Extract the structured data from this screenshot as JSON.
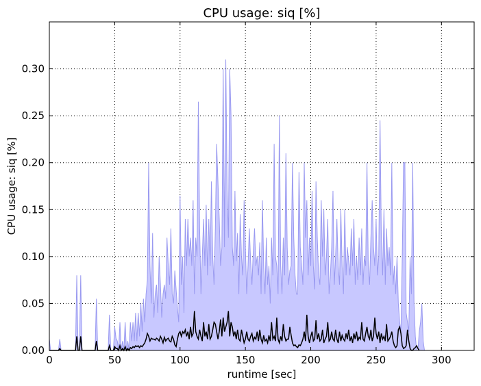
{
  "chart_data": {
    "type": "area",
    "title": "CPU usage: siq [%]",
    "xlabel": "runtime [sec]",
    "ylabel": "CPU usage: siq [%]",
    "xlim": [
      0,
      325
    ],
    "ylim": [
      0,
      0.35
    ],
    "x_ticks": [
      0,
      50,
      100,
      150,
      200,
      250,
      300
    ],
    "y_ticks": [
      0.0,
      0.05,
      0.1,
      0.15,
      0.2,
      0.25,
      0.3
    ],
    "x_tick_labels": [
      "0",
      "50",
      "100",
      "150",
      "200",
      "250",
      "300"
    ],
    "y_tick_labels": [
      "0.00",
      "0.05",
      "0.10",
      "0.15",
      "0.20",
      "0.25",
      "0.30"
    ],
    "grid": true,
    "x_step": 1,
    "series": [
      {
        "role": "max band (filled area)",
        "color": "#c8c8ff",
        "edge_color": "#9a9af0",
        "values": [
          0.012,
          0,
          0,
          0,
          0,
          0,
          0,
          0,
          0.012,
          0,
          0,
          0,
          0,
          0,
          0,
          0,
          0,
          0,
          0,
          0,
          0,
          0.08,
          0,
          0,
          0.08,
          0,
          0,
          0,
          0,
          0,
          0,
          0,
          0,
          0,
          0,
          0,
          0.055,
          0,
          0,
          0,
          0,
          0,
          0,
          0,
          0,
          0,
          0.038,
          0,
          0,
          0,
          0.025,
          0.013,
          0.01,
          0,
          0.03,
          0,
          0.01,
          0,
          0.03,
          0,
          0.01,
          0,
          0.03,
          0.01,
          0.03,
          0.01,
          0.04,
          0.01,
          0.04,
          0.015,
          0.05,
          0.02,
          0.055,
          0.03,
          0.06,
          0.075,
          0.2,
          0.09,
          0.05,
          0.125,
          0.035,
          0.06,
          0.07,
          0.04,
          0.1,
          0.07,
          0.035,
          0.06,
          0.07,
          0.055,
          0.12,
          0.09,
          0.07,
          0.13,
          0.06,
          0.05,
          0.085,
          0.065,
          0.045,
          0.03,
          0.165,
          0.07,
          0.1,
          0.04,
          0.14,
          0.09,
          0.14,
          0.1,
          0.12,
          0.09,
          0.16,
          0.06,
          0.12,
          0.1,
          0.265,
          0.13,
          0.06,
          0.1,
          0.14,
          0.09,
          0.155,
          0.08,
          0.14,
          0.09,
          0.18,
          0.1,
          0.07,
          0.13,
          0.22,
          0.18,
          0.14,
          0.09,
          0.11,
          0.3,
          0.11,
          0.31,
          0.17,
          0.12,
          0.3,
          0.25,
          0.11,
          0.09,
          0.17,
          0.095,
          0.125,
          0.06,
          0.145,
          0.1,
          0.08,
          0.16,
          0.11,
          0.06,
          0.09,
          0.13,
          0.095,
          0.07,
          0.105,
          0.13,
          0.09,
          0.1,
          0.08,
          0.115,
          0.06,
          0.16,
          0.09,
          0.06,
          0.12,
          0.07,
          0.09,
          0.05,
          0.12,
          0.08,
          0.22,
          0.1,
          0.09,
          0.06,
          0.25,
          0.09,
          0.06,
          0.12,
          0.08,
          0.21,
          0.11,
          0.07,
          0.085,
          0.09,
          0.2,
          0.12,
          0.08,
          0.06,
          0.06,
          0.19,
          0.11,
          0.09,
          0.07,
          0.2,
          0.12,
          0.16,
          0.08,
          0.12,
          0.09,
          0.17,
          0.09,
          0.065,
          0.18,
          0.12,
          0.08,
          0.07,
          0.16,
          0.1,
          0.15,
          0.08,
          0.1,
          0.14,
          0.06,
          0.08,
          0.11,
          0.17,
          0.07,
          0.1,
          0.14,
          0.09,
          0.07,
          0.15,
          0.09,
          0.06,
          0.15,
          0.08,
          0.11,
          0.095,
          0.08,
          0.13,
          0.09,
          0.14,
          0.07,
          0.1,
          0.075,
          0.12,
          0.08,
          0.13,
          0.07,
          0.1,
          0.09,
          0.2,
          0.09,
          0.07,
          0.12,
          0.16,
          0.11,
          0.09,
          0.14,
          0.08,
          0.1,
          0.245,
          0.12,
          0.08,
          0.15,
          0.07,
          0.13,
          0.09,
          0.11,
          0.08,
          0.2,
          0.07,
          0.09,
          0.06,
          0.1,
          0.05,
          0.03,
          0.02,
          0.1,
          0.2,
          0.2,
          0.04,
          0.03,
          0.02,
          0.1,
          0.06,
          0.2,
          0.05,
          0.015,
          0,
          0,
          0.02,
          0.03,
          0.05,
          0.01,
          0
        ]
      },
      {
        "role": "mean (line)",
        "color": "#000000",
        "values": [
          0,
          0,
          0,
          0,
          0,
          0,
          0,
          0,
          0.002,
          0,
          0,
          0,
          0,
          0,
          0,
          0,
          0,
          0,
          0,
          0,
          0,
          0.015,
          0,
          0,
          0.015,
          0,
          0,
          0,
          0,
          0,
          0,
          0,
          0,
          0,
          0,
          0,
          0.01,
          0,
          0,
          0,
          0,
          0,
          0,
          0,
          0,
          0,
          0.005,
          0,
          0,
          0,
          0.004,
          0.002,
          0.002,
          0,
          0.005,
          0,
          0.002,
          0,
          0.004,
          0,
          0.002,
          0,
          0.003,
          0.002,
          0.004,
          0.003,
          0.005,
          0.004,
          0.005,
          0.003,
          0.005,
          0.004,
          0.006,
          0.008,
          0.012,
          0.018,
          0.015,
          0.01,
          0.013,
          0.012,
          0.012,
          0.011,
          0.013,
          0.012,
          0.01,
          0.015,
          0.012,
          0.008,
          0.014,
          0.01,
          0.012,
          0.013,
          0.01,
          0.009,
          0.015,
          0.012,
          0.006,
          0.004,
          0.012,
          0.018,
          0.02,
          0.015,
          0.02,
          0.018,
          0.022,
          0.015,
          0.02,
          0.012,
          0.025,
          0.015,
          0.018,
          0.042,
          0.02,
          0.015,
          0.012,
          0.022,
          0.015,
          0.01,
          0.03,
          0.015,
          0.02,
          0.012,
          0.028,
          0.012,
          0.015,
          0.022,
          0.03,
          0.028,
          0.02,
          0.012,
          0.02,
          0.033,
          0.015,
          0.035,
          0.02,
          0.025,
          0.03,
          0.042,
          0.015,
          0.03,
          0.025,
          0.015,
          0.02,
          0.012,
          0.022,
          0.012,
          0.01,
          0.022,
          0.015,
          0.008,
          0.012,
          0.02,
          0.012,
          0.01,
          0.015,
          0.018,
          0.01,
          0.014,
          0.012,
          0.02,
          0.01,
          0.022,
          0.012,
          0.008,
          0.016,
          0.01,
          0.012,
          0.008,
          0.016,
          0.01,
          0.03,
          0.012,
          0.015,
          0.01,
          0.035,
          0.012,
          0.008,
          0.015,
          0.01,
          0.028,
          0.015,
          0.01,
          0.012,
          0.012,
          0.025,
          0.016,
          0.008,
          0.005,
          0.006,
          0.004,
          0.003,
          0.006,
          0.005,
          0.008,
          0.012,
          0.02,
          0.01,
          0.038,
          0.015,
          0.008,
          0.015,
          0.02,
          0.01,
          0.012,
          0.032,
          0.012,
          0.018,
          0.01,
          0.012,
          0.022,
          0.008,
          0.012,
          0.015,
          0.03,
          0.01,
          0.012,
          0.02,
          0.012,
          0.01,
          0.022,
          0.012,
          0.008,
          0.02,
          0.01,
          0.016,
          0.012,
          0.01,
          0.018,
          0.012,
          0.022,
          0.01,
          0.015,
          0.008,
          0.018,
          0.012,
          0.02,
          0.01,
          0.014,
          0.012,
          0.03,
          0.012,
          0.01,
          0.018,
          0.025,
          0.015,
          0.012,
          0.022,
          0.01,
          0.015,
          0.035,
          0.018,
          0.012,
          0.02,
          0.008,
          0.018,
          0.012,
          0.015,
          0.01,
          0.028,
          0.01,
          0.012,
          0.015,
          0.02,
          0.01,
          0.005,
          0.003,
          0.005,
          0.022,
          0.025,
          0.018,
          0.005,
          0.002,
          0.003,
          0.005,
          0.022,
          0.01,
          0.002,
          0,
          0,
          0.002,
          0.003,
          0.005,
          0.002,
          0
        ]
      }
    ]
  }
}
